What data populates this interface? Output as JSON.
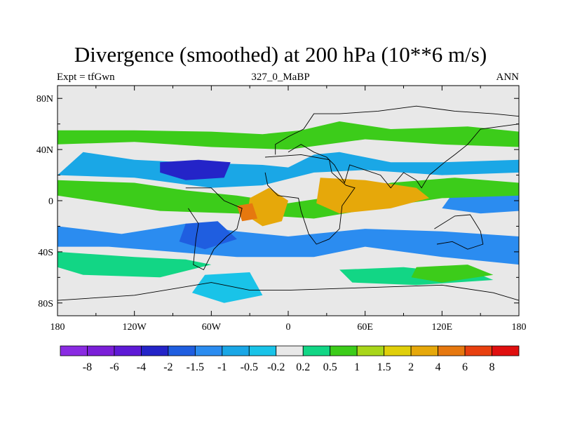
{
  "title": "Divergence (smoothed) at 200 hPa (10**6 m/s)",
  "left_string": "Expt = tfGwn",
  "center_string": "327_0_MaBP",
  "right_string": "ANN",
  "lat_ticks": [
    "80N",
    "40N",
    "0",
    "40S",
    "80S"
  ],
  "lon_ticks": [
    "180",
    "120W",
    "60W",
    "0",
    "60E",
    "120E",
    "180"
  ],
  "colorbar": {
    "colors": [
      "#8a2be2",
      "#7b1fd8",
      "#5e1ad6",
      "#2424c8",
      "#1f5ee0",
      "#2b8cf0",
      "#1aa7e6",
      "#19c3e8",
      "#e8e8e8",
      "#12d685",
      "#3ccc1a",
      "#a8d61a",
      "#e0cf0a",
      "#e6a80a",
      "#e6780f",
      "#e8400f",
      "#e00f0f"
    ],
    "labels": [
      "-8",
      "-6",
      "-4",
      "-2",
      "-1.5",
      "-1",
      "-0.5",
      "-0.2",
      "0.2",
      "0.5",
      "1",
      "1.5",
      "2",
      "4",
      "6",
      "8"
    ]
  },
  "fields": [
    {
      "name": "neg-band-north",
      "color": "#1aa7e6",
      "points": [
        [
          -160,
          38
        ],
        [
          -120,
          32
        ],
        [
          -80,
          30
        ],
        [
          -20,
          28
        ],
        [
          0,
          26
        ],
        [
          20,
          36
        ],
        [
          40,
          38
        ],
        [
          80,
          30
        ],
        [
          120,
          30
        ],
        [
          180,
          32
        ],
        [
          180,
          22
        ],
        [
          120,
          20
        ],
        [
          60,
          24
        ],
        [
          20,
          22
        ],
        [
          -20,
          12
        ],
        [
          -60,
          10
        ],
        [
          -120,
          18
        ],
        [
          -180,
          20
        ]
      ]
    },
    {
      "name": "neg-core-north",
      "color": "#2424c8",
      "points": [
        [
          -100,
          30
        ],
        [
          -70,
          32
        ],
        [
          -45,
          30
        ],
        [
          -50,
          18
        ],
        [
          -80,
          16
        ],
        [
          -100,
          22
        ]
      ]
    },
    {
      "name": "neg-core-east",
      "color": "#2b8cf0",
      "points": [
        [
          130,
          8
        ],
        [
          160,
          10
        ],
        [
          180,
          6
        ],
        [
          180,
          -8
        ],
        [
          150,
          -10
        ],
        [
          120,
          -6
        ]
      ]
    },
    {
      "name": "neg-south-band",
      "color": "#2b8cf0",
      "points": [
        [
          -180,
          -20
        ],
        [
          -130,
          -26
        ],
        [
          -80,
          -18
        ],
        [
          -40,
          -24
        ],
        [
          0,
          -28
        ],
        [
          60,
          -22
        ],
        [
          120,
          -24
        ],
        [
          180,
          -28
        ],
        [
          180,
          -50
        ],
        [
          120,
          -44
        ],
        [
          60,
          -36
        ],
        [
          20,
          -44
        ],
        [
          -40,
          -44
        ],
        [
          -90,
          -40
        ],
        [
          -140,
          -36
        ],
        [
          -180,
          -36
        ]
      ]
    },
    {
      "name": "neg-southwest-pool",
      "color": "#1f5ee0",
      "points": [
        [
          -80,
          -18
        ],
        [
          -55,
          -16
        ],
        [
          -40,
          -30
        ],
        [
          -65,
          -38
        ],
        [
          -85,
          -32
        ]
      ]
    },
    {
      "name": "pos-green-north",
      "color": "#3ccc1a",
      "points": [
        [
          -180,
          55
        ],
        [
          -120,
          55
        ],
        [
          -60,
          54
        ],
        [
          -20,
          52
        ],
        [
          10,
          55
        ],
        [
          40,
          62
        ],
        [
          80,
          56
        ],
        [
          140,
          58
        ],
        [
          180,
          54
        ],
        [
          180,
          42
        ],
        [
          120,
          44
        ],
        [
          60,
          48
        ],
        [
          0,
          40
        ],
        [
          -60,
          42
        ],
        [
          -120,
          46
        ],
        [
          -180,
          44
        ]
      ]
    },
    {
      "name": "pos-green-equator",
      "color": "#3ccc1a",
      "points": [
        [
          -180,
          16
        ],
        [
          -120,
          14
        ],
        [
          -80,
          8
        ],
        [
          -40,
          4
        ],
        [
          0,
          -2
        ],
        [
          40,
          4
        ],
        [
          80,
          14
        ],
        [
          130,
          18
        ],
        [
          180,
          14
        ],
        [
          180,
          4
        ],
        [
          120,
          2
        ],
        [
          80,
          -4
        ],
        [
          20,
          -14
        ],
        [
          -40,
          -10
        ],
        [
          -100,
          -8
        ],
        [
          -180,
          4
        ]
      ]
    },
    {
      "name": "pos-yellow-africa",
      "color": "#e6a80a",
      "points": [
        [
          -30,
          2
        ],
        [
          -15,
          10
        ],
        [
          0,
          0
        ],
        [
          -5,
          -16
        ],
        [
          -20,
          -20
        ],
        [
          -32,
          -12
        ]
      ]
    },
    {
      "name": "pos-yellow-asia",
      "color": "#e6a80a",
      "points": [
        [
          25,
          18
        ],
        [
          60,
          16
        ],
        [
          100,
          10
        ],
        [
          110,
          2
        ],
        [
          80,
          -6
        ],
        [
          40,
          -10
        ],
        [
          22,
          -2
        ]
      ]
    },
    {
      "name": "pos-red-spot",
      "color": "#e6780f",
      "points": [
        [
          -40,
          -4
        ],
        [
          -28,
          -2
        ],
        [
          -24,
          -14
        ],
        [
          -36,
          -16
        ]
      ]
    },
    {
      "name": "pos-south-green",
      "color": "#12d685",
      "points": [
        [
          -180,
          -40
        ],
        [
          -120,
          -44
        ],
        [
          -80,
          -46
        ],
        [
          -60,
          -50
        ],
        [
          -100,
          -60
        ],
        [
          -160,
          -58
        ],
        [
          -180,
          -52
        ]
      ]
    },
    {
      "name": "neg-south-ice",
      "color": "#19c3e8",
      "points": [
        [
          -65,
          -58
        ],
        [
          -30,
          -56
        ],
        [
          -20,
          -74
        ],
        [
          -50,
          -80
        ],
        [
          -75,
          -72
        ]
      ]
    },
    {
      "name": "pos-south-ocean",
      "color": "#12d685",
      "points": [
        [
          40,
          -54
        ],
        [
          90,
          -52
        ],
        [
          150,
          -58
        ],
        [
          160,
          -62
        ],
        [
          100,
          -66
        ],
        [
          50,
          -64
        ]
      ]
    },
    {
      "name": "pos-south-east-patch",
      "color": "#3ccc1a",
      "points": [
        [
          100,
          -52
        ],
        [
          140,
          -50
        ],
        [
          160,
          -58
        ],
        [
          120,
          -64
        ],
        [
          96,
          -60
        ]
      ]
    }
  ],
  "coastlines": [
    {
      "name": "africa-coast",
      "points": [
        [
          -18,
          34
        ],
        [
          10,
          36
        ],
        [
          32,
          32
        ],
        [
          34,
          22
        ],
        [
          45,
          12
        ],
        [
          52,
          10
        ],
        [
          42,
          -4
        ],
        [
          40,
          -22
        ],
        [
          32,
          -30
        ],
        [
          22,
          -34
        ],
        [
          16,
          -26
        ],
        [
          10,
          -8
        ],
        [
          8,
          2
        ],
        [
          -8,
          4
        ],
        [
          -16,
          12
        ],
        [
          -18,
          22
        ]
      ]
    },
    {
      "name": "eurasia-coast",
      "points": [
        [
          -10,
          36
        ],
        [
          -10,
          44
        ],
        [
          0,
          50
        ],
        [
          12,
          56
        ],
        [
          20,
          68
        ],
        [
          40,
          68
        ],
        [
          70,
          70
        ],
        [
          100,
          74
        ],
        [
          130,
          70
        ],
        [
          160,
          68
        ],
        [
          180,
          66
        ],
        [
          180,
          60
        ],
        [
          150,
          56
        ],
        [
          140,
          44
        ],
        [
          130,
          36
        ],
        [
          122,
          30
        ],
        [
          110,
          20
        ],
        [
          104,
          10
        ],
        [
          100,
          16
        ],
        [
          90,
          22
        ],
        [
          80,
          10
        ],
        [
          72,
          20
        ],
        [
          60,
          24
        ],
        [
          48,
          28
        ],
        [
          44,
          14
        ],
        [
          36,
          28
        ],
        [
          30,
          34
        ],
        [
          20,
          38
        ],
        [
          10,
          44
        ],
        [
          0,
          38
        ]
      ]
    },
    {
      "name": "south-america-coast",
      "points": [
        [
          -80,
          10
        ],
        [
          -60,
          10
        ],
        [
          -50,
          0
        ],
        [
          -36,
          -6
        ],
        [
          -40,
          -22
        ],
        [
          -48,
          -28
        ],
        [
          -58,
          -38
        ],
        [
          -66,
          -54
        ],
        [
          -74,
          -50
        ],
        [
          -72,
          -30
        ],
        [
          -70,
          -18
        ],
        [
          -78,
          -6
        ]
      ]
    },
    {
      "name": "antarctic-coast",
      "points": [
        [
          -180,
          -78
        ],
        [
          -120,
          -74
        ],
        [
          -60,
          -64
        ],
        [
          -30,
          -70
        ],
        [
          0,
          -70
        ],
        [
          60,
          -68
        ],
        [
          120,
          -66
        ],
        [
          160,
          -72
        ],
        [
          180,
          -78
        ]
      ]
    },
    {
      "name": "australia-coast",
      "points": [
        [
          114,
          -22
        ],
        [
          130,
          -12
        ],
        [
          142,
          -11
        ],
        [
          150,
          -24
        ],
        [
          152,
          -34
        ],
        [
          140,
          -38
        ],
        [
          128,
          -32
        ],
        [
          116,
          -34
        ]
      ]
    }
  ]
}
